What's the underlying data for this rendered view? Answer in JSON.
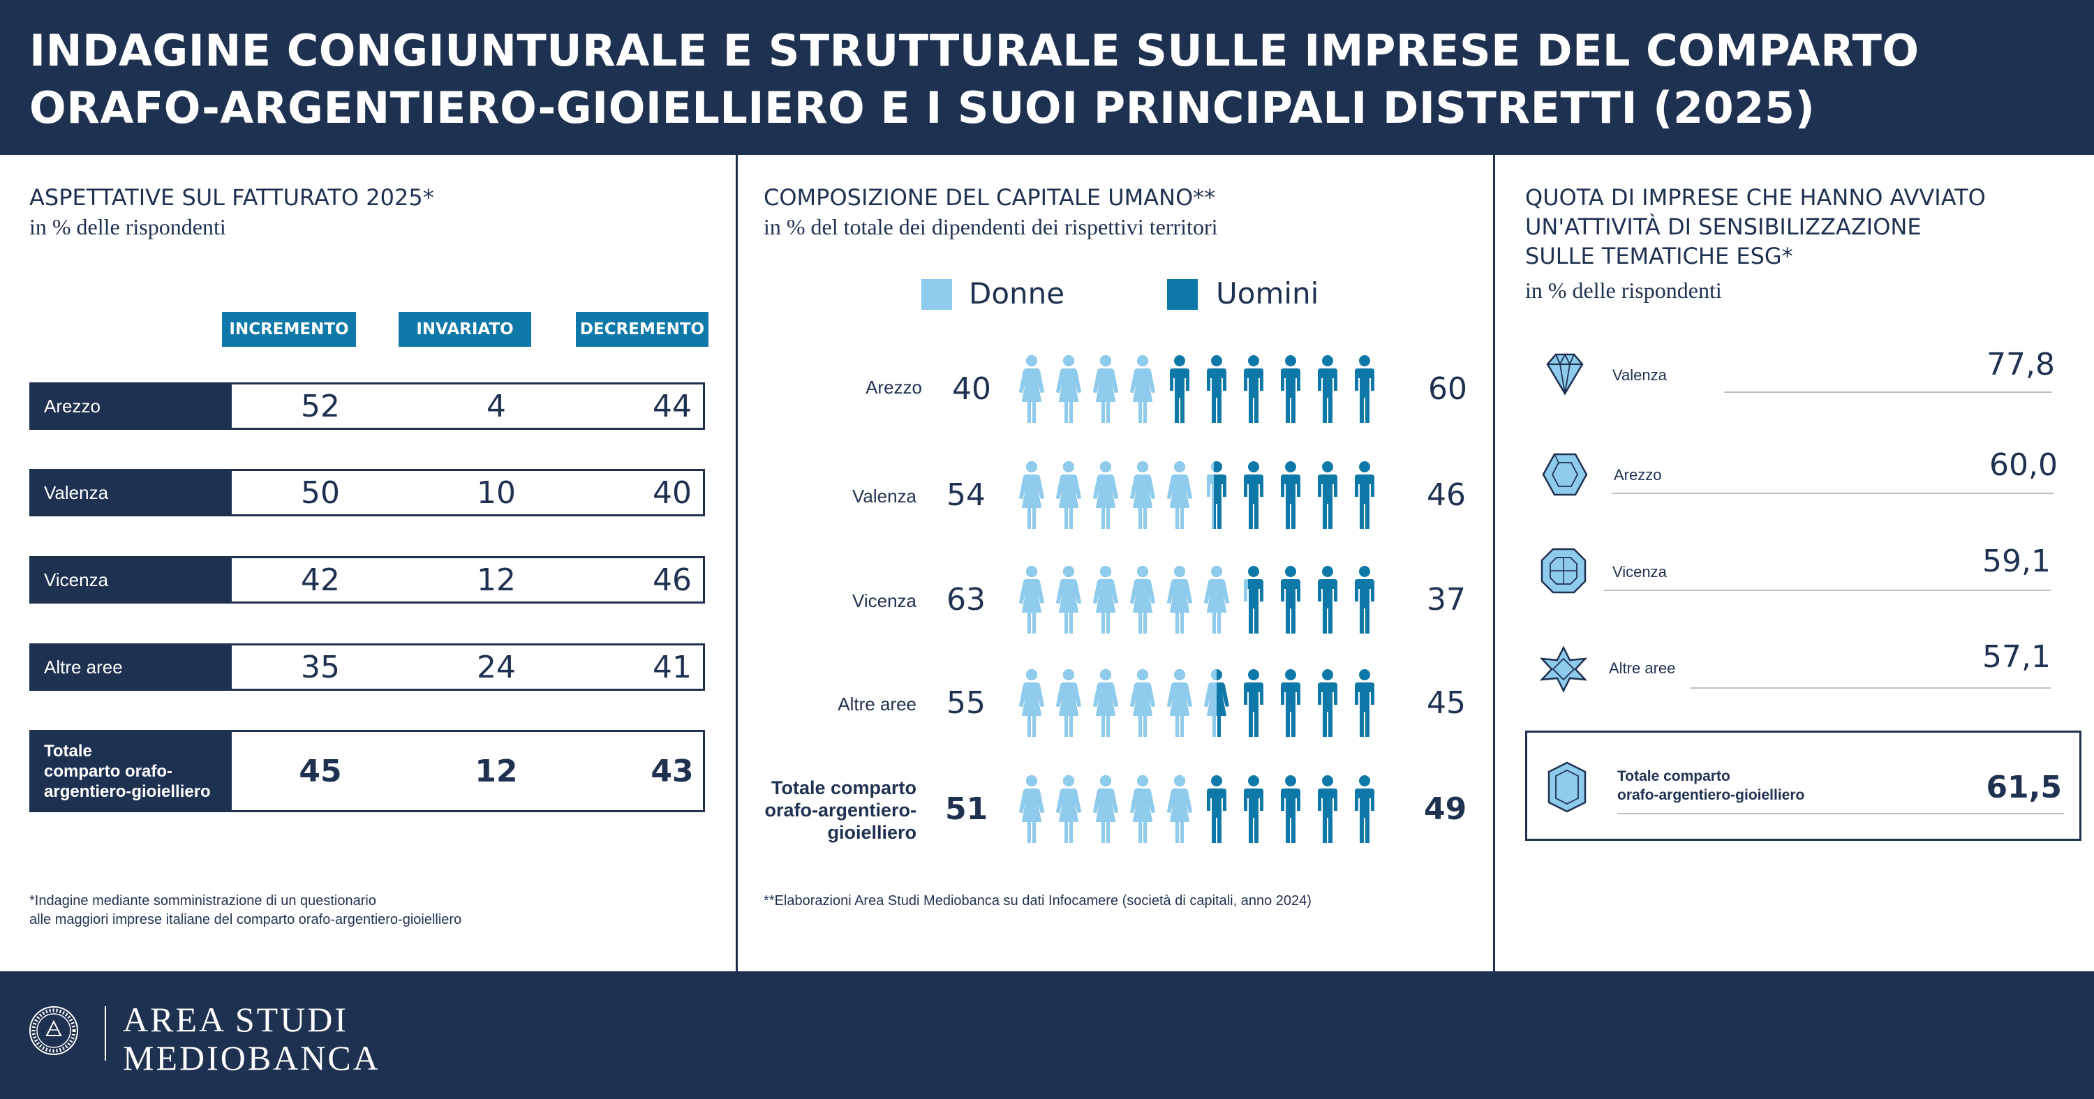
{
  "header": {
    "title_line1": "INDAGINE CONGIUNTURALE E STRUTTURALE SULLE IMPRESE DEL COMPARTO",
    "title_line2": "ORAFO-ARGENTIERO-GIOIELLIERO E I SUOI PRINCIPALI DISTRETTI (2025)"
  },
  "colors": {
    "dark_navy": "#1f3150",
    "accent_blue": "#0e78a8",
    "light_blue": "#8ecbec",
    "women": "#8ecbec",
    "men": "#0e78a8"
  },
  "section1": {
    "title": "ASPETTATIVE SUL FATTURATO 2025*",
    "subtitle": "in % delle rispondenti",
    "columns": [
      "INCREMENTO",
      "INVARIATO",
      "DECREMENTO"
    ],
    "rows": [
      {
        "label": "Arezzo",
        "values": [
          "52",
          "4",
          "44"
        ]
      },
      {
        "label": "Valenza",
        "values": [
          "50",
          "10",
          "40"
        ]
      },
      {
        "label": "Vicenza",
        "values": [
          "42",
          "12",
          "46"
        ]
      },
      {
        "label": "Altre aree",
        "values": [
          "35",
          "24",
          "41"
        ]
      }
    ],
    "total": {
      "label_l1": "Totale",
      "label_l2": "comparto orafo-",
      "label_l3": "argentiero-gioielliero",
      "values": [
        "45",
        "12",
        "43"
      ]
    },
    "note_l1": "*Indagine mediante somministrazione di un questionario",
    "note_l2": "alle maggiori imprese italiane del comparto orafo-argentiero-gioielliero"
  },
  "section2": {
    "title": "COMPOSIZIONE DEL CAPITALE UMANO**",
    "subtitle": "in % del totale dei dipendenti dei rispettivi territori",
    "legend": {
      "women": "Donne",
      "men": "Uomini"
    },
    "rows": [
      {
        "label": "Arezzo",
        "women": 40,
        "men": 60
      },
      {
        "label": "Valenza",
        "women": 54,
        "men": 46
      },
      {
        "label": "Vicenza",
        "women": 63,
        "men": 37
      },
      {
        "label": "Altre aree",
        "women": 55,
        "men": 45
      }
    ],
    "total": {
      "label_l1": "Totale comparto",
      "label_l2": "orafo-argentiero-",
      "label_l3": "gioielliero",
      "women": 51,
      "men": 49
    },
    "note": "**Elaborazioni Area Studi Mediobanca su dati Infocamere (società di capitali, anno 2024)"
  },
  "section3": {
    "title_l1": "QUOTA DI IMPRESE CHE HANNO AVVIATO",
    "title_l2": "UN'ATTIVITÀ DI SENSIBILIZZAZIONE",
    "title_l3": "SULLE TEMATICHE ESG*",
    "subtitle": "in % delle rispondenti",
    "rows": [
      {
        "label": "Valenza",
        "value": "77,8",
        "icon": "gem-round-icon"
      },
      {
        "label": "Arezzo",
        "value": "60,0",
        "icon": "gem-hexagon-icon"
      },
      {
        "label": "Vicenza",
        "value": "59,1",
        "icon": "gem-octagon-icon"
      },
      {
        "label": "Altre aree",
        "value": "57,1",
        "icon": "gem-star-icon"
      }
    ],
    "total": {
      "label_l1": "Totale comparto",
      "label_l2": "orafo-argentiero-gioielliero",
      "value": "61,5",
      "icon": "gem-emerald-icon"
    }
  },
  "footer": {
    "brand_l1": "AREA STUDI",
    "brand_l2": "MEDIOBANCA",
    "logo_icon": "mediobanca-seal-icon"
  }
}
